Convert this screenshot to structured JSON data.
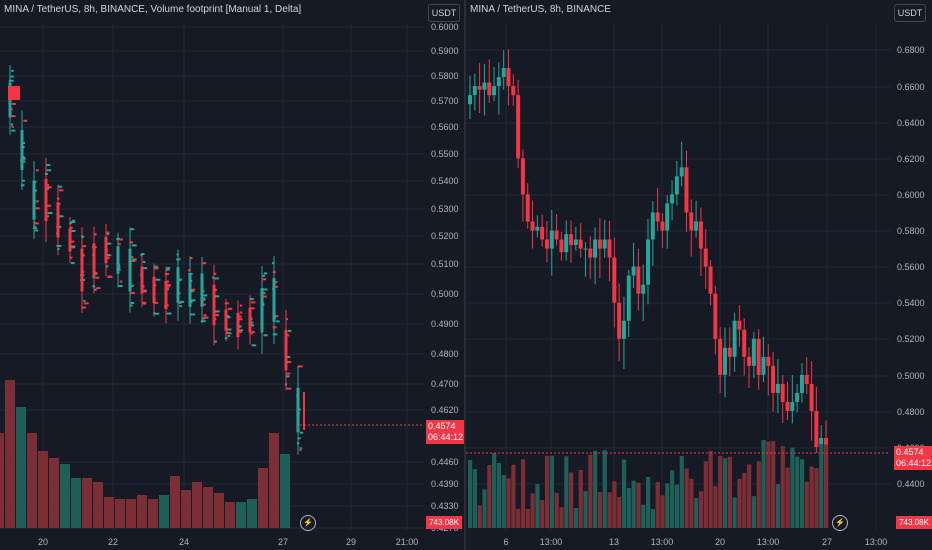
{
  "left_chart": {
    "legend": "MINA / TetherUS, 8h, BINANCE, Volume footprint [Manual 1, Delta]",
    "unit_button": "USDT",
    "price_label": "0.4574",
    "countdown_label": "06:44:12",
    "volume_label": "743.08K",
    "y_ticks": [
      "0.6000",
      "0.5900",
      "0.5800",
      "0.5700",
      "0.5600",
      "0.5500",
      "0.5400",
      "0.5300",
      "0.5200",
      "0.5100",
      "0.5000",
      "0.4900",
      "0.4800",
      "0.4700",
      "0.4620",
      "0.4460",
      "0.4390",
      "0.4330",
      "0.4270"
    ],
    "x_ticks": [
      "20",
      "22",
      "24",
      "27",
      "29",
      "21:00"
    ]
  },
  "right_chart": {
    "legend": "MINA / TetherUS, 8h, BINANCE",
    "unit_button": "USDT",
    "price_label": "0.4574",
    "countdown_label": "06:44:12",
    "volume_label": "743.08K",
    "y_ticks": [
      "0.6800",
      "0.6600",
      "0.6400",
      "0.6200",
      "0.6000",
      "0.5800",
      "0.5600",
      "0.5400",
      "0.5200",
      "0.5000",
      "0.4800",
      "0.4600",
      "0.4400"
    ],
    "x_ticks": [
      "6",
      "13:00",
      "13",
      "13:00",
      "20",
      "13:00",
      "27",
      "13:00"
    ]
  },
  "colors": {
    "up": "#26a69a",
    "down": "#f23645",
    "grid": "#232733",
    "bg": "#161a25"
  },
  "icons": {
    "gear": "lightning-gear-icon"
  }
}
